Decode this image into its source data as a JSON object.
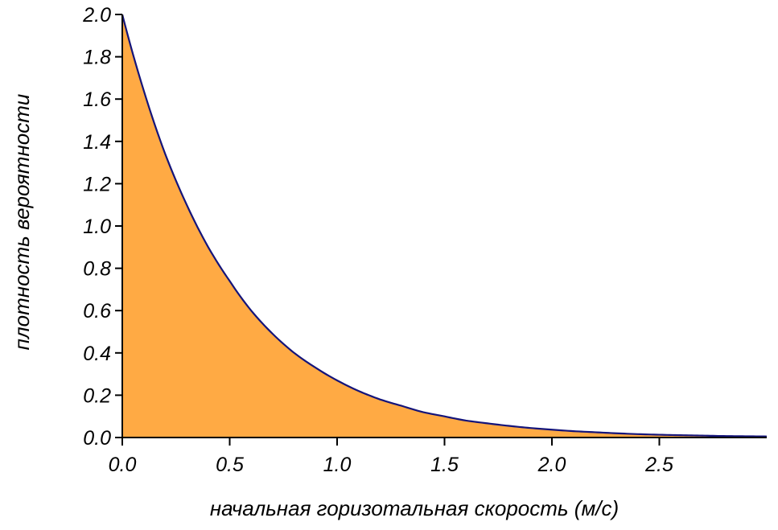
{
  "chart_data": {
    "type": "area",
    "title": "",
    "xlabel": "начальная горизотальная скорость (м/с)",
    "ylabel": "плотность вероятности",
    "xlim": [
      0,
      3
    ],
    "ylim": [
      0,
      2
    ],
    "x_ticks": [
      "0.0",
      "0.5",
      "1.0",
      "1.5",
      "2.0",
      "2.5"
    ],
    "y_ticks": [
      "0.0",
      "0.2",
      "0.4",
      "0.6",
      "0.8",
      "1.0",
      "1.2",
      "1.4",
      "1.6",
      "1.8",
      "2.0"
    ],
    "grid": false,
    "series": [
      {
        "x": [
          0.0,
          0.1,
          0.2,
          0.3,
          0.4,
          0.5,
          0.6,
          0.7,
          0.8,
          0.9,
          1.0,
          1.1,
          1.2,
          1.3,
          1.4,
          1.5,
          1.6,
          1.7,
          1.8,
          1.9,
          2.0,
          2.1,
          2.2,
          2.3,
          2.4,
          2.5,
          2.6,
          2.7,
          2.8,
          2.9,
          3.0
        ],
        "y": [
          2.0,
          1.64,
          1.34,
          1.1,
          0.9,
          0.74,
          0.6,
          0.49,
          0.4,
          0.33,
          0.27,
          0.22,
          0.18,
          0.15,
          0.12,
          0.1,
          0.08,
          0.067,
          0.055,
          0.045,
          0.037,
          0.03,
          0.025,
          0.02,
          0.016,
          0.013,
          0.011,
          0.009,
          0.007,
          0.006,
          0.005
        ]
      }
    ],
    "fill_color": "#ffaa44",
    "line_color": "#14147a",
    "axis_color": "#000000"
  }
}
